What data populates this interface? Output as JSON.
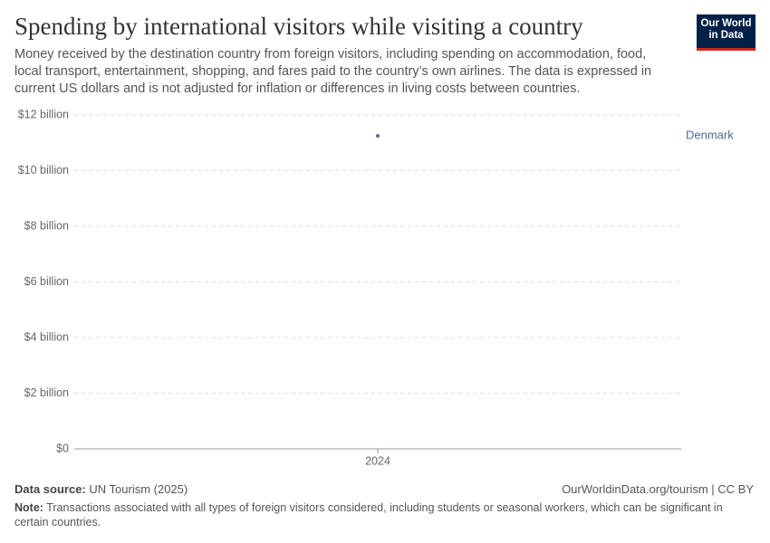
{
  "chart_data": {
    "type": "line",
    "title": "Spending by international visitors while visiting a country",
    "subtitle": "Money received by the destination country from foreign visitors, including spending on accommodation, food, local transport, entertainment, shopping, and fares paid to the country’s own airlines. The data is expressed in current US dollars and is not adjusted for inflation or differences in living costs between countries.",
    "logo": [
      "Our World",
      "in Data"
    ],
    "categories": [
      "2024"
    ],
    "series": [
      {
        "name": "Denmark",
        "color": "#4c6a9c",
        "values": [
          11250000000
        ]
      }
    ],
    "ylim": [
      0,
      12000000000
    ],
    "yticks": [
      {
        "value": 0,
        "label": "$0"
      },
      {
        "value": 2000000000,
        "label": "$2 billion"
      },
      {
        "value": 4000000000,
        "label": "$4 billion"
      },
      {
        "value": 6000000000,
        "label": "$6 billion"
      },
      {
        "value": 8000000000,
        "label": "$8 billion"
      },
      {
        "value": 10000000000,
        "label": "$10 billion"
      },
      {
        "value": 12000000000,
        "label": "$12 billion"
      }
    ],
    "grid": true,
    "source": {
      "label": "Data source:",
      "text": "UN Tourism (2025)"
    },
    "url": "OurWorldinData.org/tourism | CC BY",
    "note": {
      "label": "Note:",
      "text": "Transactions associated with all types of foreign visitors considered, including students or seasonal workers, which can be significant in certain countries."
    }
  }
}
